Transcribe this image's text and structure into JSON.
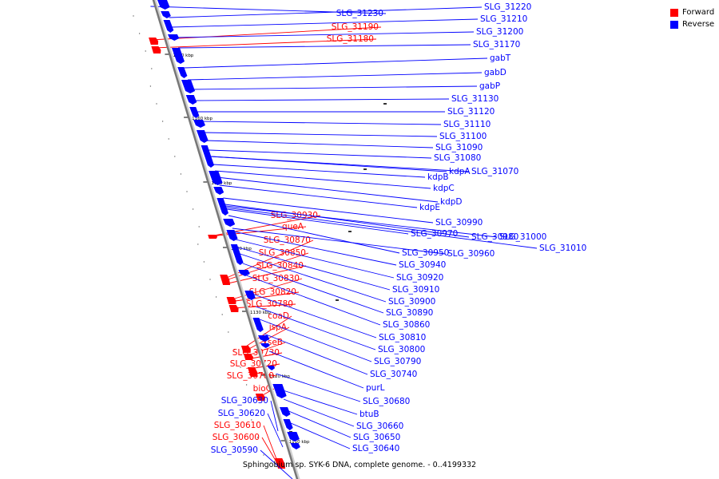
{
  "caption": "Sphingobium sp. SYK-6 DNA, complete genome. - 0..4199332",
  "legend": {
    "forward_label": "Forward",
    "reverse_label": "Reverse",
    "forward_color": "#ff0000",
    "reverse_color": "#0000ff"
  },
  "scale_ticks": [
    "1170 kbp",
    "1160 kbp",
    "1150 kbp",
    "1140 kbp",
    "1130 kbp",
    "1120 kbp",
    "1110 kbp"
  ],
  "forward_genes": [
    "SLG_31190",
    "SLG_31180",
    "SLG_30930",
    "queA",
    "SLG_30870",
    "SLG_30850",
    "SLG_30840",
    "SLG_30830",
    "SLG_30820",
    "SLG_30780",
    "coaD",
    "ispA",
    "xseB",
    "SLG_30730",
    "SLG_30720",
    "SLG_30700",
    "bioC",
    "SLG_30610",
    "SLG_30600"
  ],
  "reverse_genes_left": [
    "SLG_31230",
    "SLG_30630",
    "SLG_30620",
    "SLG_30590"
  ],
  "reverse_genes_right": [
    "SLG_31220",
    "SLG_31210",
    "SLG_31200",
    "SLG_31170",
    "gabT",
    "gabD",
    "gabP",
    "SLG_31130",
    "SLG_31120",
    "SLG_31110",
    "SLG_31100",
    "SLG_31090",
    "SLG_31080",
    "kdpA",
    "SLG_31070",
    "kdpB",
    "kdpC",
    "kdpD",
    "kdpE",
    "SLG_30990",
    "SLG_30970",
    "SLG_30980",
    "SLG_31000",
    "SLG_31010",
    "SLG_30950",
    "SLG_30960",
    "SLG_30940",
    "SLG_30920",
    "SLG_30910",
    "SLG_30900",
    "SLG_30890",
    "SLG_30860",
    "SLG_30810",
    "SLG_30800",
    "SLG_30790",
    "SLG_30740",
    "purL",
    "SLG_30680",
    "btuB",
    "SLG_30660",
    "SLG_30650",
    "SLG_30640"
  ]
}
